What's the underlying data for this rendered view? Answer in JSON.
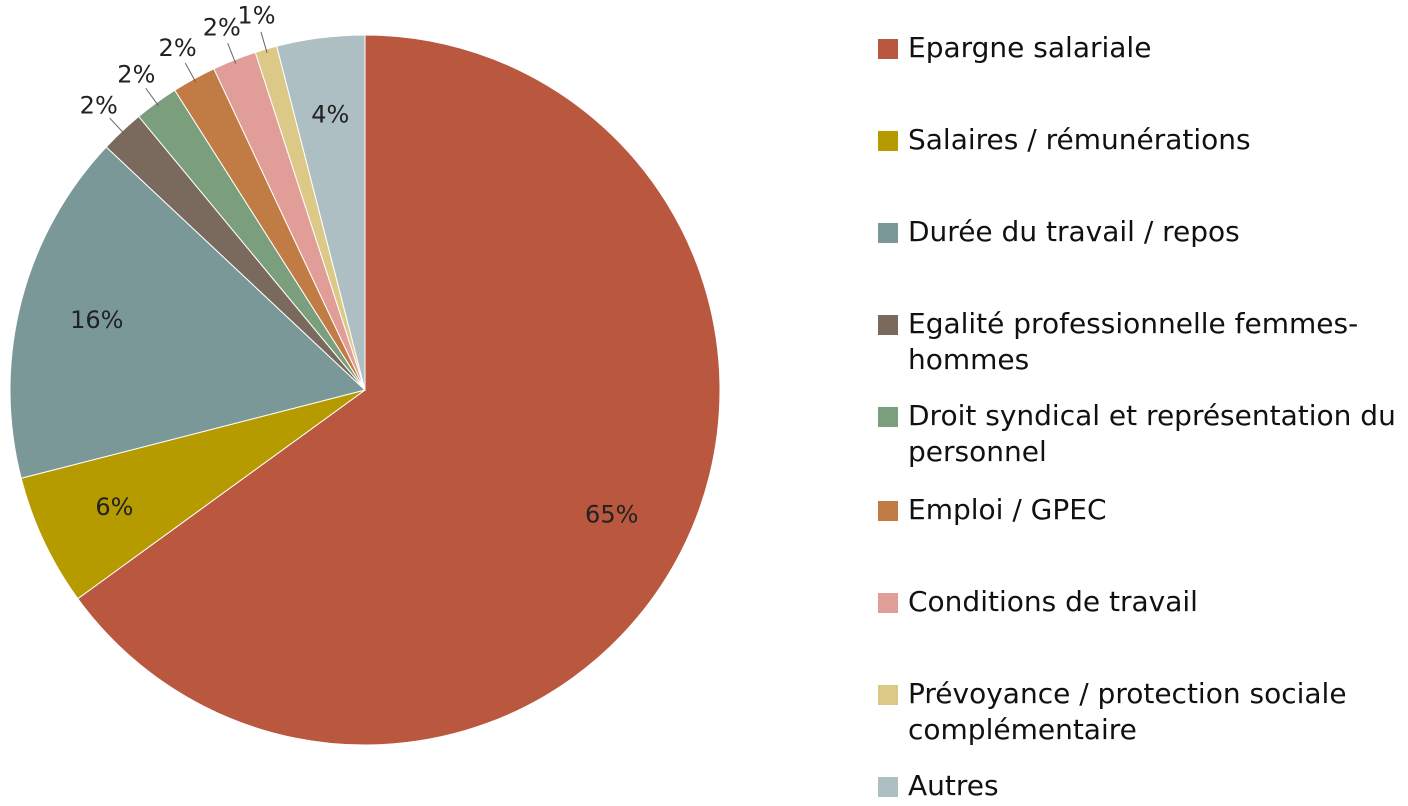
{
  "chart_data": {
    "type": "pie",
    "categories": [
      "Epargne salariale",
      "Salaires / rémunérations",
      "Durée du travail / repos",
      "Egalité professionnelle femmes-hommes",
      "Droit syndical et représentation du personnel",
      "Emploi / GPEC",
      "Conditions de travail",
      "Prévoyance / protection sociale complémentaire",
      "Autres"
    ],
    "values": [
      65,
      6,
      16,
      2,
      2,
      2,
      2,
      1,
      4
    ],
    "value_labels": [
      "65%",
      "6%",
      "16%",
      "2%",
      "2%",
      "2%",
      "2%",
      "1%",
      "4%"
    ],
    "colors": [
      "#b9573f",
      "#b59a00",
      "#7a9898",
      "#7a6a5e",
      "#7b9e7c",
      "#c07c44",
      "#e19e99",
      "#dcc987",
      "#aebfc4"
    ],
    "legend": "right"
  }
}
